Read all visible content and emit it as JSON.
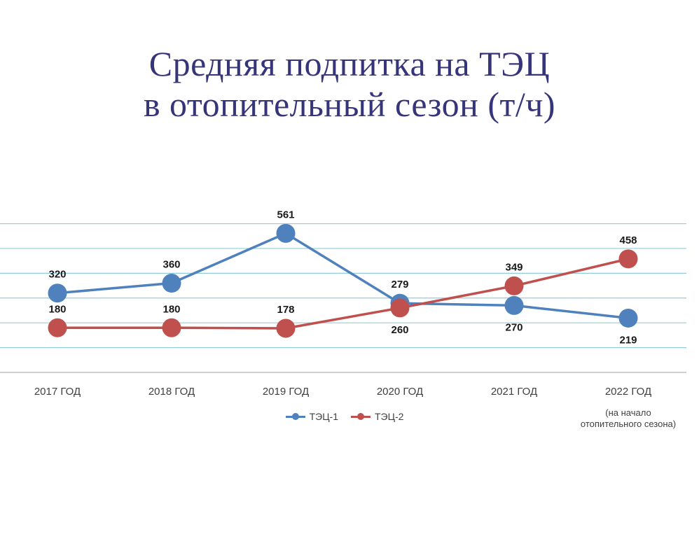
{
  "title_lines": [
    "Средняя подпитка на ТЭЦ",
    "в отопительный сезон (т/ч)"
  ],
  "chart_data": {
    "type": "line",
    "title": "Средняя подпитка на ТЭЦ в отопительный сезон (т/ч)",
    "categories": [
      [
        "2017 ГОД"
      ],
      [
        "2018 ГОД"
      ],
      [
        "2019 ГОД"
      ],
      [
        "2020 ГОД"
      ],
      [
        "2021 ГОД"
      ],
      [
        "2022 ГОД",
        "(на начало",
        "отопительного сезона)"
      ]
    ],
    "series": [
      {
        "name": "ТЭЦ-1",
        "color": "#4f81bd",
        "values": [
          320,
          360,
          561,
          279,
          270,
          219
        ]
      },
      {
        "name": "ТЭЦ-2",
        "color": "#c0504d",
        "values": [
          180,
          180,
          178,
          260,
          349,
          458
        ]
      }
    ],
    "ylim": [
      0,
      700
    ],
    "grid": true,
    "legend": "bottom"
  }
}
